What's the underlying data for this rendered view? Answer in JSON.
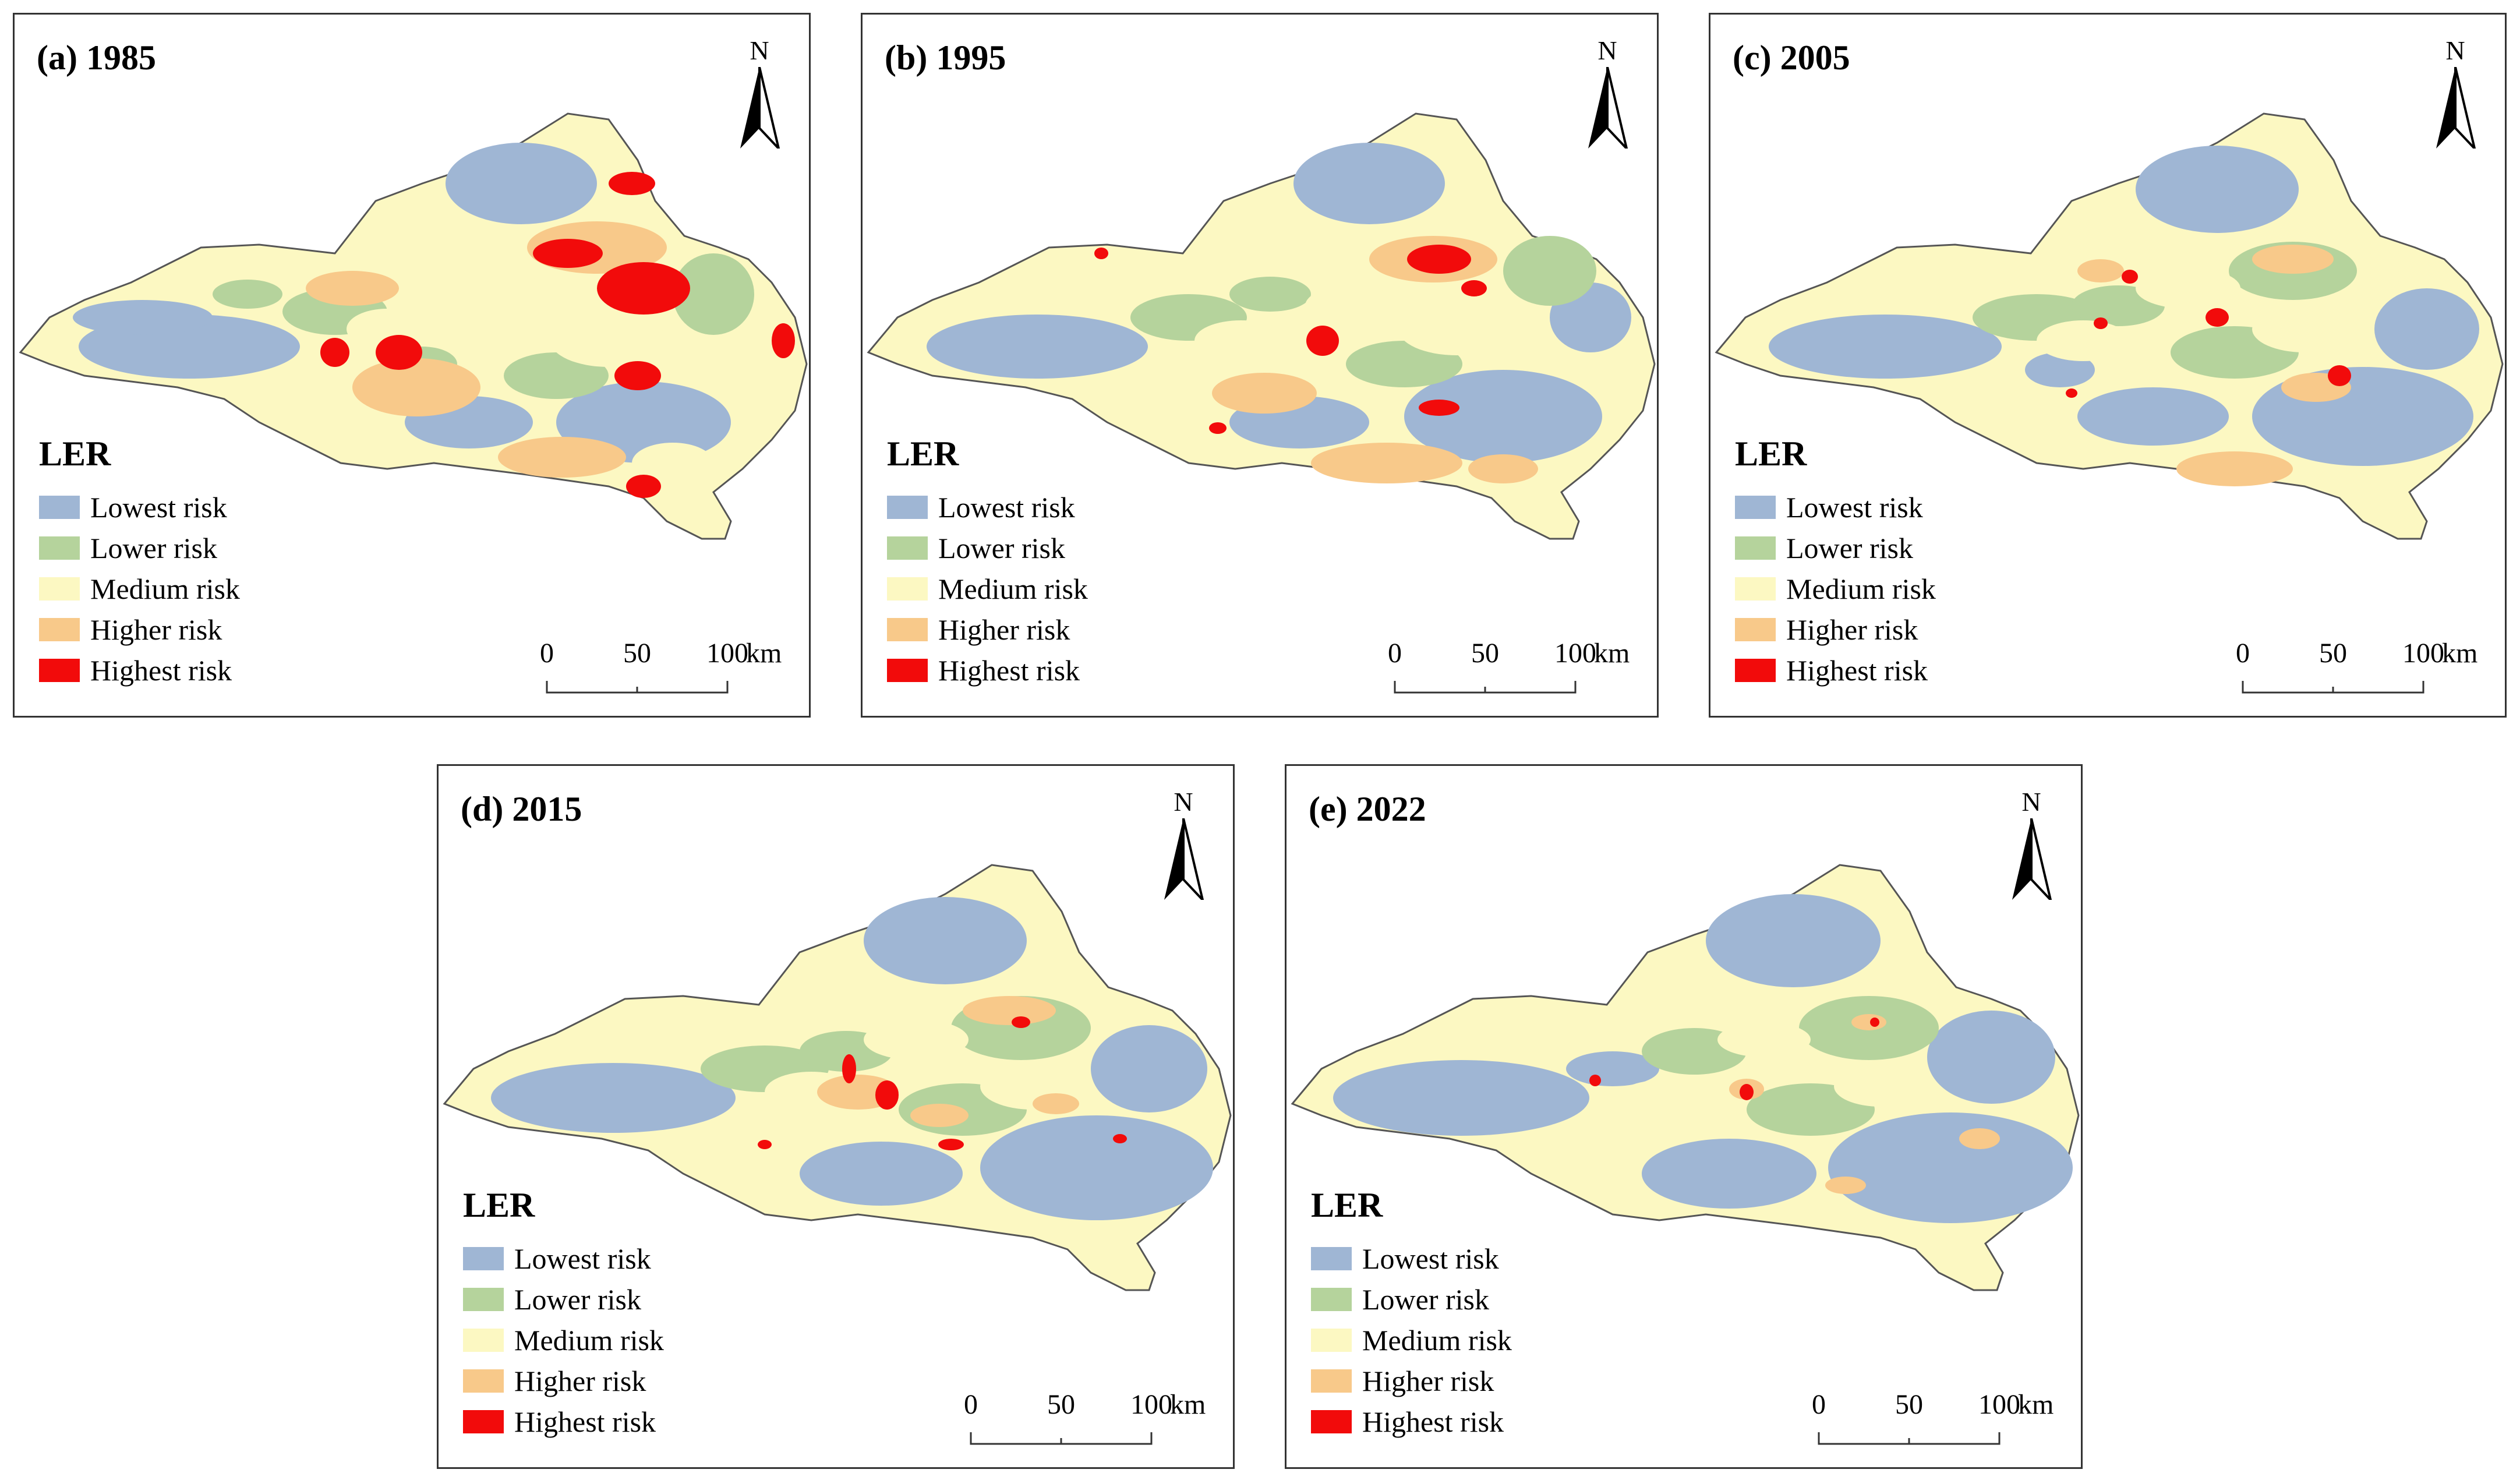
{
  "colors": {
    "lowest": "#9fb6d4",
    "lower": "#b5d39c",
    "medium": "#fcf8c2",
    "higher": "#f8c98a",
    "highest": "#f20b0b",
    "boundary": "#555555"
  },
  "north_label": "N",
  "legend": {
    "title": "LER",
    "items": [
      {
        "label": "Lowest risk",
        "color": "#9fb6d4"
      },
      {
        "label": "Lower risk",
        "color": "#b5d39c"
      },
      {
        "label": "Medium risk",
        "color": "#fcf8c2"
      },
      {
        "label": "Higher risk",
        "color": "#f8c98a"
      },
      {
        "label": "Highest risk",
        "color": "#f20b0b"
      }
    ]
  },
  "scale": {
    "labels": [
      "0",
      "50",
      "100"
    ],
    "unit": "km"
  },
  "panels": [
    {
      "title": "(a) 1985"
    },
    {
      "title": "(b) 1995"
    },
    {
      "title": "(c) 2005"
    },
    {
      "title": "(d) 2015"
    },
    {
      "title": "(e) 2022"
    }
  ]
}
